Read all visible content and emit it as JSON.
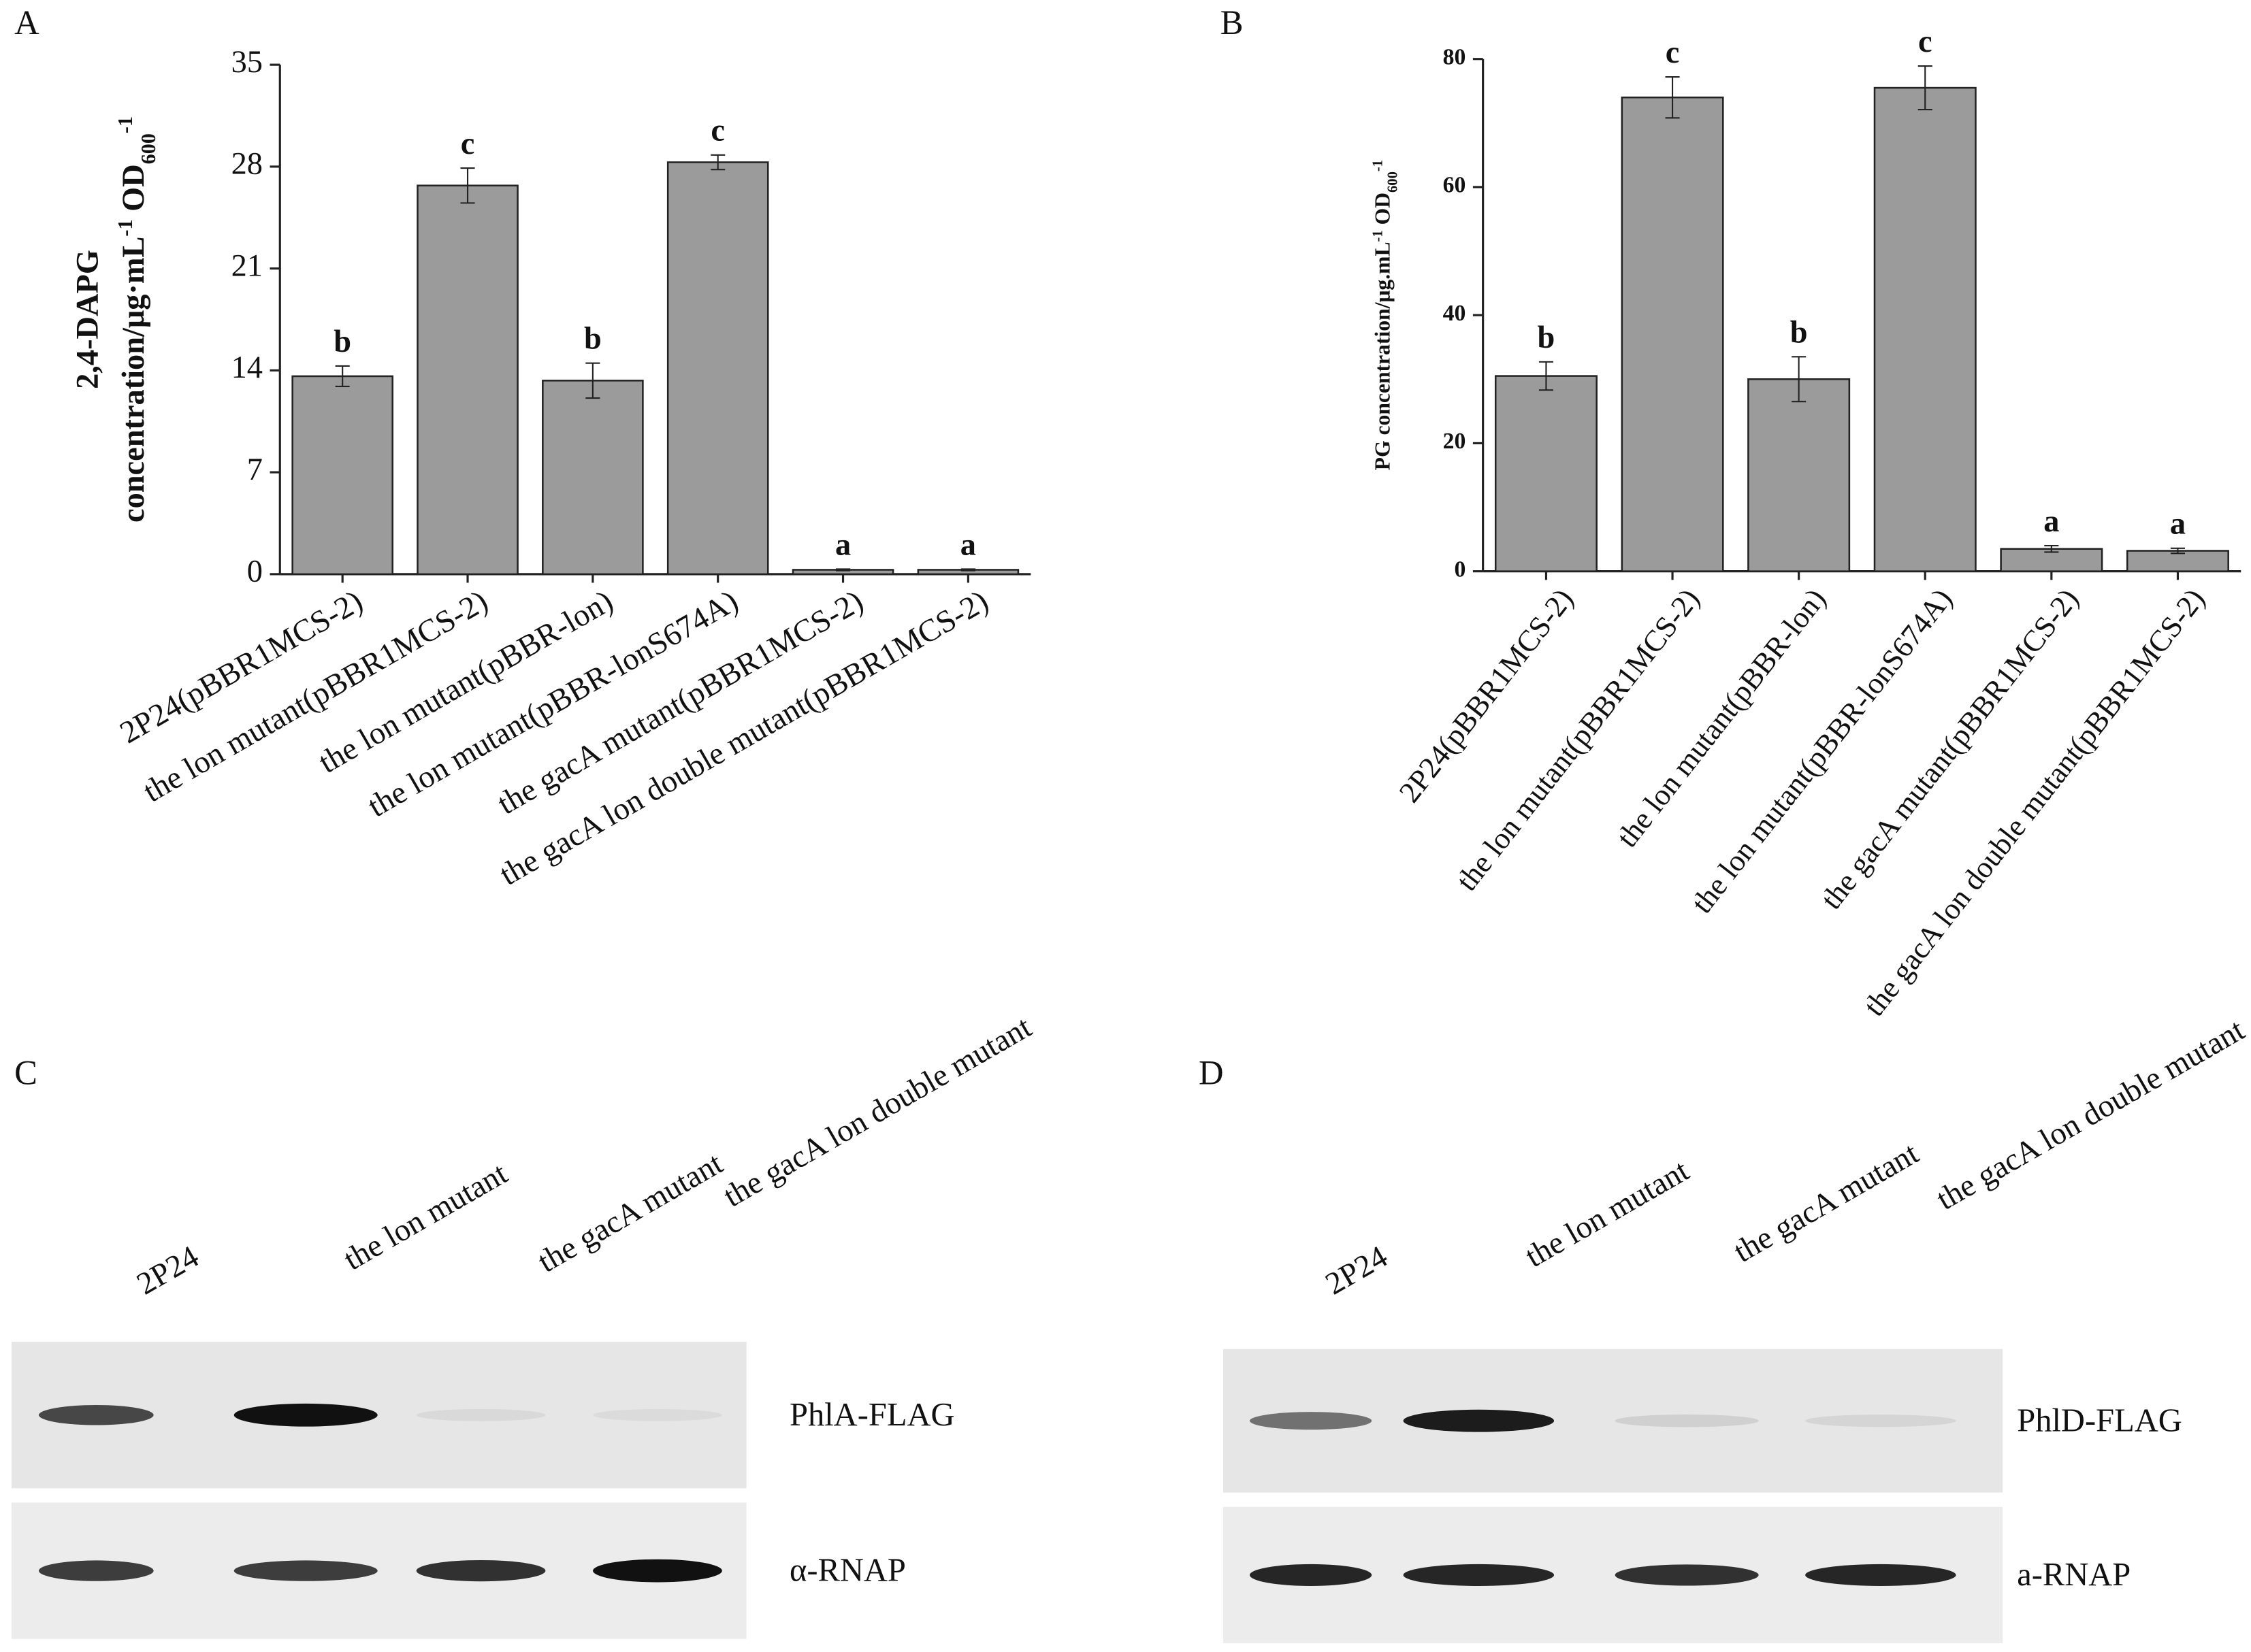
{
  "chart_data": [
    {
      "type": "bar",
      "panel": "A",
      "ylabel": [
        [
          "2,4-DAPG"
        ],
        [
          "concentration/μg·mL",
          "-1",
          " OD",
          "600",
          "-1"
        ]
      ],
      "categories": [
        "2P24(pBBR1MCS-2)",
        "the lon mutant(pBBR1MCS-2)",
        "the lon mutant(pBBR-lon)",
        "the lon mutant(pBBR-lonS674A)",
        "the gacA mutant(pBBR1MCS-2)",
        "the gacA lon double mutant(pBBR1MCS-2)"
      ],
      "values": [
        13.6,
        26.7,
        13.3,
        28.3,
        0.3,
        0.3
      ],
      "errors": [
        0.7,
        1.2,
        1.2,
        0.5,
        0.05,
        0.05
      ],
      "annotations": [
        "b",
        "c",
        "b",
        "c",
        "a",
        "a"
      ],
      "color": "#9b9b9b",
      "ylim": [
        0,
        35
      ],
      "yticks": [
        0,
        7,
        14,
        21,
        28,
        35
      ]
    },
    {
      "type": "bar",
      "panel": "B",
      "ylabel": [
        [
          "PG concentration/μg.mL",
          "-1",
          " OD",
          "600",
          "-1"
        ]
      ],
      "categories": [
        "2P24(pBBR1MCS-2)",
        "the lon mutant(pBBR1MCS-2)",
        "the lon mutant(pBBR-lon)",
        "the lon mutant(pBBR-lonS674A)",
        "the gacA mutant(pBBR1MCS-2)",
        "the gacA lon double mutant(pBBR1MCS-2)"
      ],
      "values": [
        30.5,
        74,
        30,
        75.5,
        3.5,
        3.2
      ],
      "errors": [
        2.2,
        3.2,
        3.5,
        3.4,
        0.5,
        0.4
      ],
      "annotations": [
        "b",
        "c",
        "b",
        "c",
        "a",
        "a"
      ],
      "color": "#9b9b9b",
      "ylim": [
        0,
        80
      ],
      "yticks": [
        0,
        20,
        40,
        60,
        80
      ]
    }
  ],
  "blots": [
    {
      "panel": "C",
      "lanes": [
        "2P24",
        "the lon mutant",
        "the gacA mutant",
        "the gacA lon double mutant"
      ],
      "bands": [
        "PhlA-FLAG",
        "α-RNAP"
      ]
    },
    {
      "panel": "D",
      "lanes": [
        "2P24",
        "the lon mutant",
        "the gacA mutant",
        "the gacA lon double mutant"
      ],
      "bands": [
        "PhlD-FLAG",
        "a-RNAP"
      ]
    }
  ]
}
